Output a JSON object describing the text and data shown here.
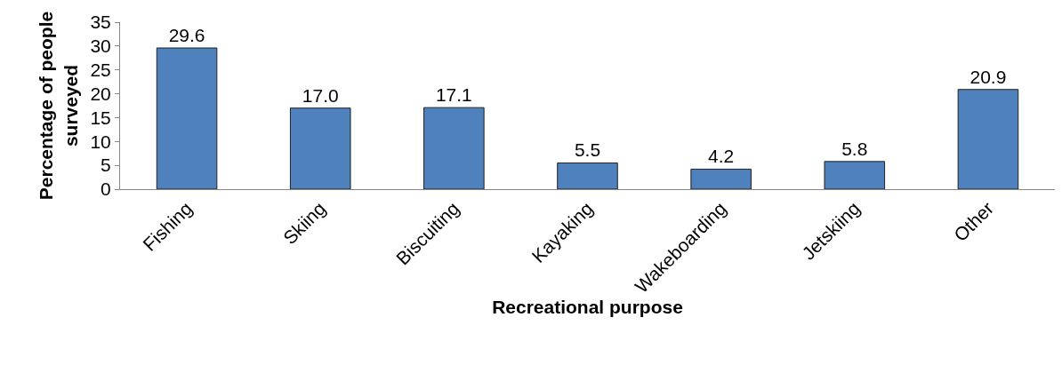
{
  "chart_data": {
    "type": "bar",
    "xlabel": "Recreational purpose",
    "ylabel": "Percentage of people surveyed",
    "categories": [
      "Fishing",
      "Skiing",
      "Biscuiting",
      "Kayaking",
      "Wakeboarding",
      "Jetskiing",
      "Other"
    ],
    "values": [
      29.6,
      17.0,
      17.1,
      5.5,
      4.2,
      5.8,
      20.9
    ],
    "value_labels": [
      "29.6",
      "17.0",
      "17.1",
      "5.5",
      "4.2",
      "5.8",
      "20.9"
    ],
    "color": "#4f81bd",
    "ylim": [
      0,
      35
    ],
    "yticks": [
      0,
      5,
      10,
      15,
      20,
      25,
      30,
      35
    ]
  }
}
